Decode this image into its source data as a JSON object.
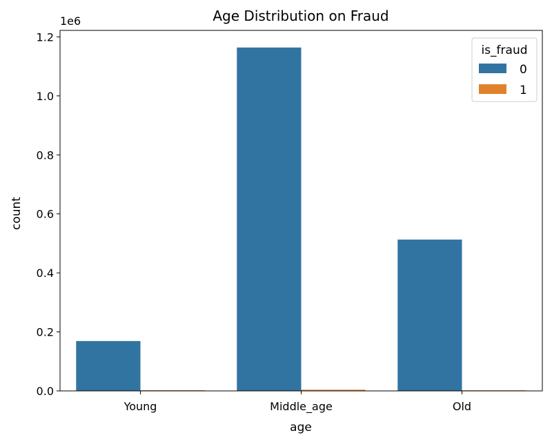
{
  "chart_data": {
    "type": "bar",
    "title": "Age Distribution on Fraud",
    "xlabel": "age",
    "ylabel": "count",
    "y_offset_label": "1e6",
    "categories": [
      "Young",
      "Middle_age",
      "Old"
    ],
    "series": [
      {
        "name": "0",
        "color": "#3274a1",
        "values": [
          169000,
          1164000,
          513000
        ]
      },
      {
        "name": "1",
        "color": "#e1812c",
        "values": [
          2200,
          4000,
          2000
        ]
      }
    ],
    "ylim": [
      0,
      1222000
    ],
    "yticks": [
      0.0,
      0.2,
      0.4,
      0.6,
      0.8,
      1.0,
      1.2
    ],
    "ytick_labels": [
      "0.0",
      "0.2",
      "0.4",
      "0.6",
      "0.8",
      "1.0",
      "1.2"
    ],
    "ytick_scale": 1000000,
    "legend": {
      "title": "is_fraud",
      "position": "top-right",
      "entries": [
        "0",
        "1"
      ]
    },
    "grid": false
  }
}
